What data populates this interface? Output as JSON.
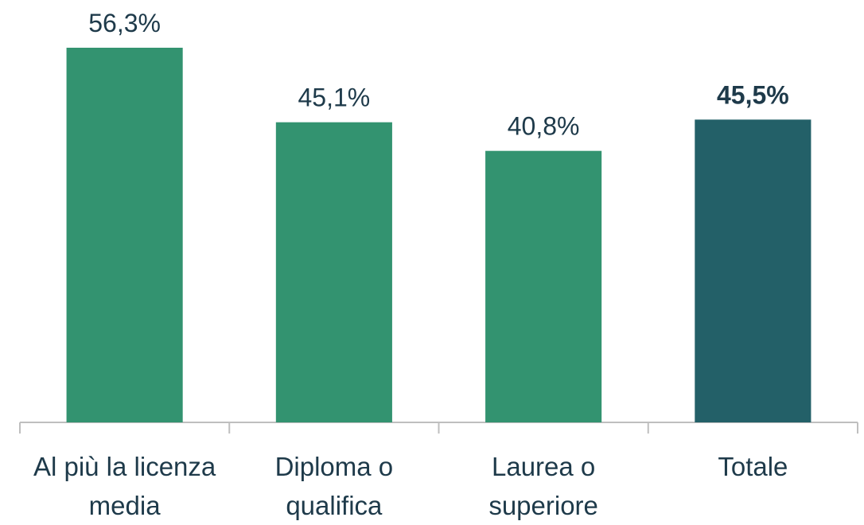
{
  "chart_data": {
    "type": "bar",
    "categories": [
      "Al più la licenza media",
      "Diploma o qualifica",
      "Laurea o superiore",
      "Totale"
    ],
    "values": [
      56.3,
      45.1,
      40.8,
      45.5
    ],
    "value_labels": [
      "56,3%",
      "45,1%",
      "40,8%",
      "45,5%"
    ],
    "colors": [
      "#339370",
      "#339370",
      "#339370",
      "#236068"
    ],
    "value_label_bold": [
      false,
      false,
      false,
      true
    ],
    "grid": false
  }
}
